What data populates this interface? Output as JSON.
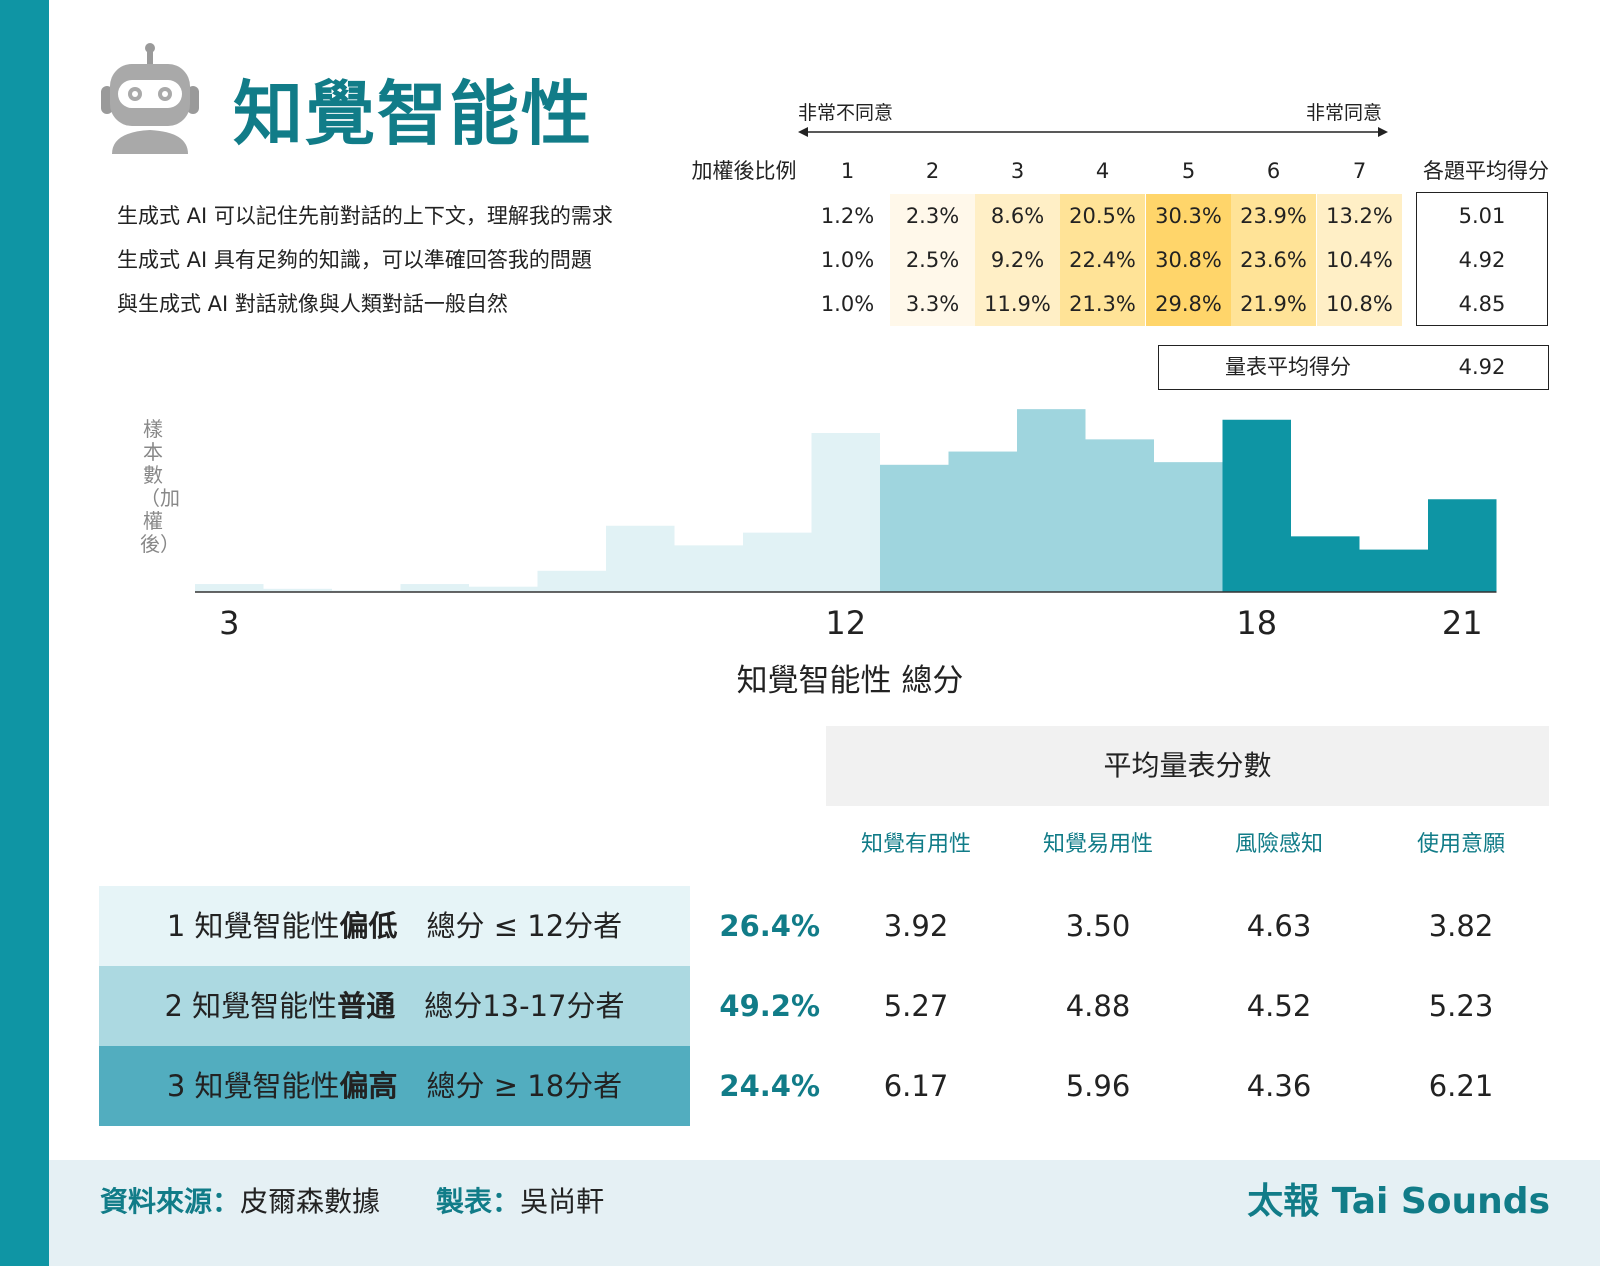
{
  "header": {
    "title": "知覺智能性"
  },
  "scale": {
    "left_label": "非常不同意",
    "right_label": "非常同意",
    "weight_header": "加權後比例",
    "points": [
      "1",
      "2",
      "3",
      "4",
      "5",
      "6",
      "7"
    ],
    "avg_header": "各題平均得分"
  },
  "questions": [
    {
      "text": "生成式 AI 可以記住先前對話的上下文，理解我的需求",
      "pcts": [
        "1.2%",
        "2.3%",
        "8.6%",
        "20.5%",
        "30.3%",
        "23.9%",
        "13.2%"
      ],
      "avg": "5.01"
    },
    {
      "text": "生成式 AI 具有足夠的知識，可以準確回答我的問題",
      "pcts": [
        "1.0%",
        "2.5%",
        "9.2%",
        "22.4%",
        "30.8%",
        "23.6%",
        "10.4%"
      ],
      "avg": "4.92"
    },
    {
      "text": "與生成式 AI 對話就像與人類對話一般自然",
      "pcts": [
        "1.0%",
        "3.3%",
        "11.9%",
        "21.3%",
        "29.8%",
        "21.9%",
        "10.8%"
      ],
      "avg": "4.85"
    }
  ],
  "cell_colors": [
    "#ffffff",
    "#fff8ea",
    "#ffefc6",
    "#ffe397",
    "#ffd56a",
    "#ffe397",
    "#ffefc6"
  ],
  "scale_avg": {
    "label": "量表平均得分",
    "value": "4.92"
  },
  "chart_data": {
    "type": "bar",
    "title": "",
    "xlabel": "知覺智能性 總分",
    "ylabel": "樣本數（加權後）",
    "x_tick_labels": [
      "3",
      "12",
      "18",
      "21"
    ],
    "categories": [
      3,
      4,
      5,
      6,
      7,
      8,
      9,
      10,
      11,
      12,
      13,
      14,
      15,
      16,
      17,
      18,
      19,
      20,
      21
    ],
    "values": [
      1.5,
      0.6,
      0.3,
      1.5,
      1.0,
      4.0,
      12.5,
      8.8,
      11.2,
      30.0,
      24.0,
      26.5,
      34.5,
      28.8,
      24.5,
      32.5,
      10.5,
      8.0,
      17.5
    ],
    "series_colors": {
      "low": "#e1f2f5",
      "mid": "#9fd5de",
      "high": "#0e95a4"
    },
    "color_groups": [
      {
        "name": "1",
        "range": [
          3,
          12
        ]
      },
      {
        "name": "2",
        "range": [
          13,
          17
        ]
      },
      {
        "name": "3",
        "range": [
          18,
          21
        ]
      }
    ]
  },
  "summary": {
    "title": "平均量表分數",
    "columns": [
      "知覺有用性",
      "知覺易用性",
      "風險感知",
      "使用意願"
    ],
    "groups": [
      {
        "prefix": "1 知覺智能性",
        "bold": "偏低",
        "suffix": "　總分 ≤ 12分者",
        "pct": "26.4%",
        "values": [
          "3.92",
          "3.50",
          "4.63",
          "3.82"
        ],
        "color": "#e6f4f7"
      },
      {
        "prefix": "2 知覺智能性",
        "bold": "普通",
        "suffix": "　總分13-17分者",
        "pct": "49.2%",
        "values": [
          "5.27",
          "4.88",
          "4.52",
          "5.23"
        ],
        "color": "#acd9e1"
      },
      {
        "prefix": "3 知覺智能性",
        "bold": "偏高",
        "suffix": "　總分 ≥ 18分者",
        "pct": "24.4%",
        "values": [
          "6.17",
          "5.96",
          "4.36",
          "6.21"
        ],
        "color": "#52adbf"
      }
    ]
  },
  "footer": {
    "source_key": "資料來源：",
    "source_value": "皮爾森數據",
    "maker_key": "製表：",
    "maker_value": "吳尚軒",
    "brand": "太報 Tai Sounds"
  }
}
